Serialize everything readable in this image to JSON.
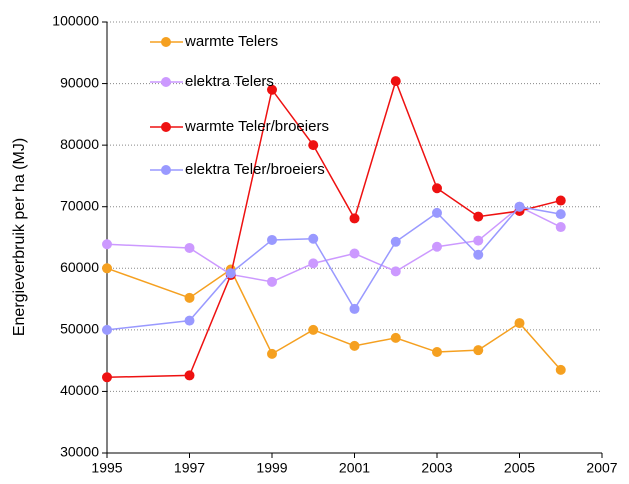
{
  "chart_data": {
    "type": "line",
    "y_label": "Energieverbruik per ha (MJ)",
    "x": [
      1995,
      1997,
      1998,
      1999,
      2000,
      2001,
      2002,
      2003,
      2004,
      2005,
      2006
    ],
    "series": [
      {
        "name": "warmte Telers",
        "color": "#f5a020",
        "values": [
          60000,
          55200,
          59800,
          46100,
          50000,
          47400,
          48700,
          46400,
          46700,
          51100,
          43500
        ]
      },
      {
        "name": "elektra Telers",
        "color": "#cc99ff",
        "values": [
          63900,
          63300,
          59000,
          57800,
          60800,
          62400,
          59500,
          63500,
          64500,
          70000,
          66700
        ]
      },
      {
        "name": "warmte Teler/broeiers",
        "color": "#ee1111",
        "values": [
          42300,
          42600,
          58900,
          89000,
          80000,
          68100,
          90400,
          73000,
          68400,
          69300,
          71000
        ]
      },
      {
        "name": "elektra Teler/broeiers",
        "color": "#9999ff",
        "values": [
          50000,
          51500,
          59200,
          64600,
          64800,
          53400,
          64300,
          69000,
          62200,
          70000,
          68800
        ]
      }
    ],
    "xlim": [
      1995,
      2007
    ],
    "xticks": [
      1995,
      1997,
      1999,
      2001,
      2003,
      2005,
      2007
    ],
    "ylim": [
      30000,
      100000
    ],
    "yticks": [
      30000,
      40000,
      50000,
      60000,
      70000,
      80000,
      90000,
      100000
    ],
    "grid": true,
    "legend": "upper left"
  }
}
